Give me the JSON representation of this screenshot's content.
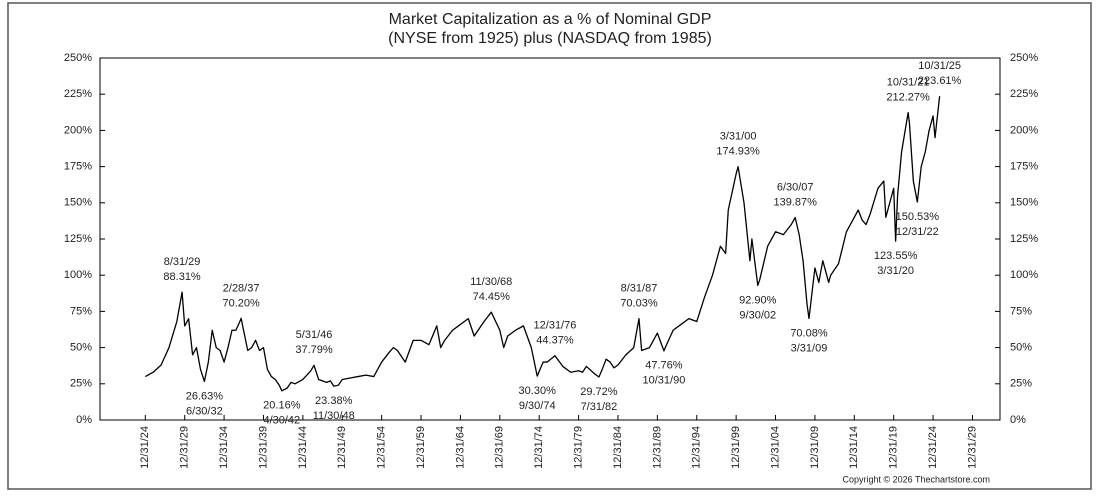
{
  "chart_data": {
    "type": "line",
    "title": "Market Capitalization as a % of Nominal GDP",
    "subtitle": "(NYSE from 1925) plus (NASDAQ from 1985)",
    "copyright": "Copyright © 2026 Thechartstore.com",
    "x": [
      "1924-12-31",
      "1925-12-31",
      "1926-12-31",
      "1927-12-31",
      "1928-12-31",
      "1929-08-31",
      "1929-12-31",
      "1930-06-30",
      "1930-12-31",
      "1931-06-30",
      "1931-12-31",
      "1932-06-30",
      "1932-12-31",
      "1933-06-30",
      "1933-12-31",
      "1934-06-30",
      "1934-12-31",
      "1935-06-30",
      "1935-12-31",
      "1936-06-30",
      "1936-12-31",
      "1937-02-28",
      "1937-12-31",
      "1938-06-30",
      "1938-12-31",
      "1939-06-30",
      "1939-12-31",
      "1940-06-30",
      "1940-12-31",
      "1941-06-30",
      "1941-12-31",
      "1942-04-30",
      "1942-12-31",
      "1943-06-30",
      "1943-12-31",
      "1944-12-31",
      "1945-12-31",
      "1946-05-31",
      "1946-12-31",
      "1947-06-30",
      "1947-12-31",
      "1948-06-30",
      "1948-11-30",
      "1949-06-30",
      "1949-12-31",
      "1950-12-31",
      "1951-12-31",
      "1952-12-31",
      "1953-12-31",
      "1954-12-31",
      "1955-12-31",
      "1956-06-30",
      "1956-12-31",
      "1957-12-31",
      "1958-12-31",
      "1959-12-31",
      "1960-12-31",
      "1961-12-31",
      "1962-06-30",
      "1962-12-31",
      "1963-12-31",
      "1964-12-31",
      "1965-12-31",
      "1966-09-30",
      "1966-12-31",
      "1967-12-31",
      "1968-11-30",
      "1969-12-31",
      "1970-06-30",
      "1970-12-31",
      "1971-12-31",
      "1972-12-31",
      "1973-12-31",
      "1974-09-30",
      "1975-06-30",
      "1975-12-31",
      "1976-12-31",
      "1977-12-31",
      "1978-12-31",
      "1979-12-31",
      "1980-06-30",
      "1980-12-31",
      "1981-12-31",
      "1982-07-31",
      "1982-12-31",
      "1983-06-30",
      "1983-12-31",
      "1984-06-30",
      "1984-12-31",
      "1985-12-31",
      "1986-12-31",
      "1987-08-31",
      "1987-12-31",
      "1988-12-31",
      "1989-12-31",
      "1990-10-31",
      "1990-12-31",
      "1991-12-31",
      "1992-12-31",
      "1993-12-31",
      "1994-12-31",
      "1995-12-31",
      "1996-12-31",
      "1997-12-31",
      "1998-08-31",
      "1998-12-31",
      "1999-12-31",
      "2000-03-31",
      "2000-12-31",
      "2001-09-30",
      "2001-12-31",
      "2002-09-30",
      "2002-12-31",
      "2003-12-31",
      "2004-12-31",
      "2005-12-31",
      "2006-12-31",
      "2007-06-30",
      "2007-12-31",
      "2008-06-30",
      "2008-12-31",
      "2009-03-31",
      "2009-12-31",
      "2010-06-30",
      "2010-12-31",
      "2011-09-30",
      "2011-12-31",
      "2012-12-31",
      "2013-12-31",
      "2014-12-31",
      "2015-06-30",
      "2015-12-31",
      "2016-06-30",
      "2016-12-31",
      "2017-12-31",
      "2018-09-30",
      "2018-12-31",
      "2019-12-31",
      "2020-03-31",
      "2020-06-30",
      "2020-12-31",
      "2021-10-31",
      "2021-12-31",
      "2022-06-30",
      "2022-12-31",
      "2023-06-30",
      "2023-12-31",
      "2024-06-30",
      "2024-12-31",
      "2025-03-31",
      "2025-10-31"
    ],
    "series": [
      {
        "color": "#000000",
        "values": [
          30,
          33,
          38,
          50,
          68,
          88.31,
          65,
          70,
          45,
          50,
          35,
          26.63,
          40,
          62,
          50,
          48,
          40,
          50,
          62,
          62,
          68,
          70.2,
          48,
          50,
          55,
          48,
          50,
          35,
          30,
          28,
          24,
          20.16,
          22,
          26,
          25,
          28,
          34,
          37.79,
          28,
          27,
          26,
          27,
          23.38,
          24,
          28,
          29,
          30,
          31,
          30,
          40,
          47,
          50,
          48,
          40,
          55,
          55,
          52,
          65,
          50,
          55,
          62,
          66,
          70,
          58,
          60,
          68,
          74.45,
          62,
          50,
          58,
          62,
          65,
          50,
          30.3,
          40,
          40,
          44.37,
          37,
          33,
          34,
          33,
          37,
          32,
          29.72,
          35,
          42,
          40,
          36,
          38,
          45,
          50,
          70.03,
          48,
          50,
          60,
          47.76,
          50,
          62,
          66,
          70,
          68,
          85,
          100,
          120,
          115,
          145,
          170,
          174.93,
          150,
          110,
          125,
          92.9,
          97,
          120,
          130,
          128,
          135,
          139.87,
          128,
          110,
          80,
          70.08,
          105,
          95,
          110,
          95,
          100,
          108,
          130,
          140,
          145,
          138,
          135,
          142,
          160,
          165,
          140,
          160,
          123.55,
          155,
          185,
          212.27,
          205,
          165,
          150.53,
          175,
          185,
          200,
          210,
          195,
          223.61
        ]
      }
    ],
    "annotations": [
      {
        "x": "1929-08-31",
        "date": "8/31/29",
        "value": 88.31,
        "label": "88.31%"
      },
      {
        "x": "1932-06-30",
        "date": "6/30/32",
        "value": 26.63,
        "label": "26.63%"
      },
      {
        "x": "1937-02-28",
        "date": "2/28/37",
        "value": 70.2,
        "label": "70.20%"
      },
      {
        "x": "1942-04-30",
        "date": "4/30/42",
        "value": 20.16,
        "label": "20.16%"
      },
      {
        "x": "1946-05-31",
        "date": "5/31/46",
        "value": 37.79,
        "label": "37.79%"
      },
      {
        "x": "1948-11-30",
        "date": "11/30/48",
        "value": 23.38,
        "label": "23.38%"
      },
      {
        "x": "1968-11-30",
        "date": "11/30/68",
        "value": 74.45,
        "label": "74.45%"
      },
      {
        "x": "1974-09-30",
        "date": "9/30/74",
        "value": 30.3,
        "label": "30.30%"
      },
      {
        "x": "1976-12-31",
        "date": "12/31/76",
        "value": 44.37,
        "label": "44.37%"
      },
      {
        "x": "1982-07-31",
        "date": "7/31/82",
        "value": 29.72,
        "label": "29.72%"
      },
      {
        "x": "1987-08-31",
        "date": "8/31/87",
        "value": 70.03,
        "label": "70.03%"
      },
      {
        "x": "1990-10-31",
        "date": "10/31/90",
        "value": 47.76,
        "label": "47.76%"
      },
      {
        "x": "2000-03-31",
        "date": "3/31/00",
        "value": 174.93,
        "label": "174.93%"
      },
      {
        "x": "2002-09-30",
        "date": "9/30/02",
        "value": 92.9,
        "label": "92.90%"
      },
      {
        "x": "2007-06-30",
        "date": "6/30/07",
        "value": 139.87,
        "label": "139.87%"
      },
      {
        "x": "2009-03-31",
        "date": "3/31/09",
        "value": 70.08,
        "label": "70.08%"
      },
      {
        "x": "2020-03-31",
        "date": "3/31/20",
        "value": 123.55,
        "label": "123.55%"
      },
      {
        "x": "2021-10-31",
        "date": "10/31/21",
        "value": 212.27,
        "label": "212.27%"
      },
      {
        "x": "2022-12-31",
        "date": "12/31/22",
        "value": 150.53,
        "label": "150.53%"
      },
      {
        "x": "2025-10-31",
        "date": "10/31/25",
        "value": 223.61,
        "label": "223.61%"
      }
    ],
    "xlim": [
      "1919-03-31",
      "2033-06-30"
    ],
    "xticks": [
      {
        "value": "1924-12-31",
        "label": "12/31/24"
      },
      {
        "value": "1929-12-31",
        "label": "12/31/29"
      },
      {
        "value": "1934-12-31",
        "label": "12/31/34"
      },
      {
        "value": "1939-12-31",
        "label": "12/31/39"
      },
      {
        "value": "1944-12-31",
        "label": "12/31/44"
      },
      {
        "value": "1949-12-31",
        "label": "12/31/49"
      },
      {
        "value": "1954-12-31",
        "label": "12/31/54"
      },
      {
        "value": "1959-12-31",
        "label": "12/31/59"
      },
      {
        "value": "1964-12-31",
        "label": "12/31/64"
      },
      {
        "value": "1969-12-31",
        "label": "12/31/69"
      },
      {
        "value": "1974-12-31",
        "label": "12/31/74"
      },
      {
        "value": "1979-12-31",
        "label": "12/31/79"
      },
      {
        "value": "1984-12-31",
        "label": "12/31/84"
      },
      {
        "value": "1989-12-31",
        "label": "12/31/89"
      },
      {
        "value": "1994-12-31",
        "label": "12/31/94"
      },
      {
        "value": "1999-12-31",
        "label": "12/31/99"
      },
      {
        "value": "2004-12-31",
        "label": "12/31/04"
      },
      {
        "value": "2009-12-31",
        "label": "12/31/09"
      },
      {
        "value": "2014-12-31",
        "label": "12/31/14"
      },
      {
        "value": "2019-12-31",
        "label": "12/31/19"
      },
      {
        "value": "2024-12-31",
        "label": "12/31/24"
      },
      {
        "value": "2029-12-31",
        "label": "12/31/29"
      }
    ],
    "ylim": [
      0,
      250
    ],
    "yticks": [
      {
        "value": 0,
        "label": "0%"
      },
      {
        "value": 25,
        "label": "25%"
      },
      {
        "value": 50,
        "label": "50%"
      },
      {
        "value": 75,
        "label": "75%"
      },
      {
        "value": 100,
        "label": "100%"
      },
      {
        "value": 125,
        "label": "125%"
      },
      {
        "value": 150,
        "label": "150%"
      },
      {
        "value": 175,
        "label": "175%"
      },
      {
        "value": 200,
        "label": "200%"
      },
      {
        "value": 225,
        "label": "225%"
      },
      {
        "value": 250,
        "label": "250%"
      }
    ],
    "right_axis": true
  }
}
